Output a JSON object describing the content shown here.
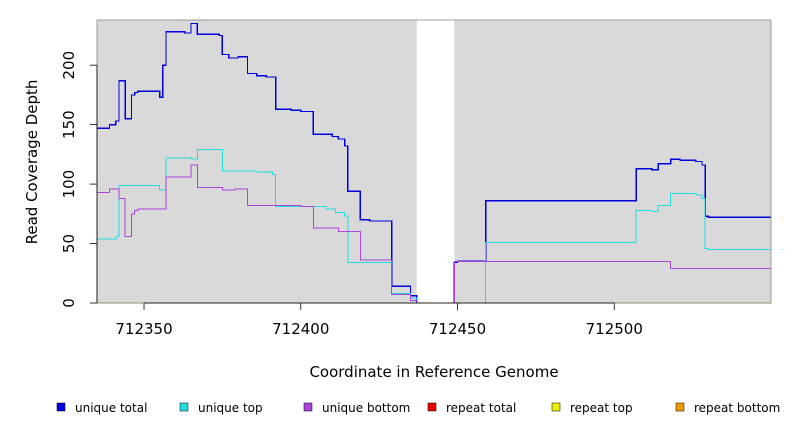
{
  "chart_data": {
    "type": "line",
    "xlabel": "Coordinate in Reference Genome",
    "ylabel": "Read Coverage Depth",
    "xlim": [
      712335,
      712550
    ],
    "ylim": [
      0,
      238
    ],
    "x_ticks": [
      712350,
      712400,
      712450,
      712500
    ],
    "x_tick_labels": [
      "712350",
      "712400",
      "712450",
      "712500"
    ],
    "y_ticks": [
      0,
      50,
      100,
      150,
      200
    ],
    "y_tick_labels": [
      "0",
      "50",
      "100",
      "150",
      "200"
    ],
    "gap": [
      712437,
      712449
    ],
    "background_color": "#d9d9d9",
    "grid": false,
    "legend_position": "bottom",
    "series": [
      {
        "name": "unique total",
        "color": "#0000dd",
        "points": [
          [
            712335,
            147
          ],
          [
            712339,
            150
          ],
          [
            712341,
            153
          ],
          [
            712342,
            187
          ],
          [
            712344,
            155
          ],
          [
            712346,
            175
          ],
          [
            712347,
            177
          ],
          [
            712348,
            178
          ],
          [
            712355,
            173
          ],
          [
            712356,
            200
          ],
          [
            712357,
            228
          ],
          [
            712363,
            227
          ],
          [
            712365,
            235
          ],
          [
            712367,
            226
          ],
          [
            712374,
            225
          ],
          [
            712375,
            209
          ],
          [
            712377,
            206
          ],
          [
            712380,
            207
          ],
          [
            712383,
            193
          ],
          [
            712386,
            191
          ],
          [
            712389,
            190
          ],
          [
            712392,
            163
          ],
          [
            712397,
            162
          ],
          [
            712400,
            161
          ],
          [
            712404,
            142
          ],
          [
            712410,
            140
          ],
          [
            712412,
            138
          ],
          [
            712414,
            132
          ],
          [
            712415,
            94
          ],
          [
            712419,
            70
          ],
          [
            712422,
            69
          ],
          [
            712429,
            14
          ],
          [
            712435,
            6
          ],
          [
            712437,
            0
          ],
          [
            712449,
            34
          ],
          [
            712450,
            35
          ],
          [
            712459,
            86
          ],
          [
            712507,
            113
          ],
          [
            712512,
            112
          ],
          [
            712514,
            117
          ],
          [
            712518,
            121
          ],
          [
            712521,
            120
          ],
          [
            712526,
            119
          ],
          [
            712528,
            116
          ],
          [
            712529,
            73
          ],
          [
            712530,
            72
          ],
          [
            712550,
            72
          ]
        ]
      },
      {
        "name": "unique top",
        "color": "#22dddd",
        "points": [
          [
            712335,
            54
          ],
          [
            712341,
            56
          ],
          [
            712342,
            99
          ],
          [
            712355,
            95
          ],
          [
            712357,
            122
          ],
          [
            712365,
            121
          ],
          [
            712367,
            129
          ],
          [
            712375,
            111
          ],
          [
            712386,
            110
          ],
          [
            712391,
            108
          ],
          [
            712392,
            81
          ],
          [
            712408,
            79
          ],
          [
            712411,
            76
          ],
          [
            712414,
            73
          ],
          [
            712415,
            34
          ],
          [
            712429,
            8
          ],
          [
            712435,
            4
          ],
          [
            712437,
            0
          ],
          [
            712459,
            51
          ],
          [
            712507,
            78
          ],
          [
            712512,
            77
          ],
          [
            712514,
            82
          ],
          [
            712518,
            92
          ],
          [
            712526,
            91
          ],
          [
            712528,
            88
          ],
          [
            712529,
            46
          ],
          [
            712530,
            45
          ],
          [
            712550,
            45
          ]
        ]
      },
      {
        "name": "unique bottom",
        "color": "#aa44dd",
        "points": [
          [
            712335,
            93
          ],
          [
            712339,
            96
          ],
          [
            712342,
            88
          ],
          [
            712344,
            56
          ],
          [
            712346,
            75
          ],
          [
            712347,
            78
          ],
          [
            712348,
            79
          ],
          [
            712357,
            106
          ],
          [
            712365,
            116
          ],
          [
            712367,
            97
          ],
          [
            712375,
            95
          ],
          [
            712379,
            96
          ],
          [
            712383,
            82
          ],
          [
            712400,
            81
          ],
          [
            712404,
            63
          ],
          [
            712412,
            60
          ],
          [
            712419,
            36
          ],
          [
            712429,
            7
          ],
          [
            712435,
            2
          ],
          [
            712437,
            0
          ],
          [
            712449,
            35
          ],
          [
            712518,
            29
          ],
          [
            712550,
            29
          ]
        ]
      },
      {
        "name": "repeat total",
        "color": "#ee0000",
        "points": [
          [
            712335,
            0
          ],
          [
            712550,
            0
          ]
        ]
      },
      {
        "name": "repeat top",
        "color": "#eeee00",
        "points": [
          [
            712335,
            0
          ],
          [
            712550,
            0
          ]
        ]
      },
      {
        "name": "repeat bottom",
        "color": "#ee9900",
        "points": [
          [
            712335,
            0
          ],
          [
            712550,
            0
          ]
        ]
      }
    ]
  }
}
